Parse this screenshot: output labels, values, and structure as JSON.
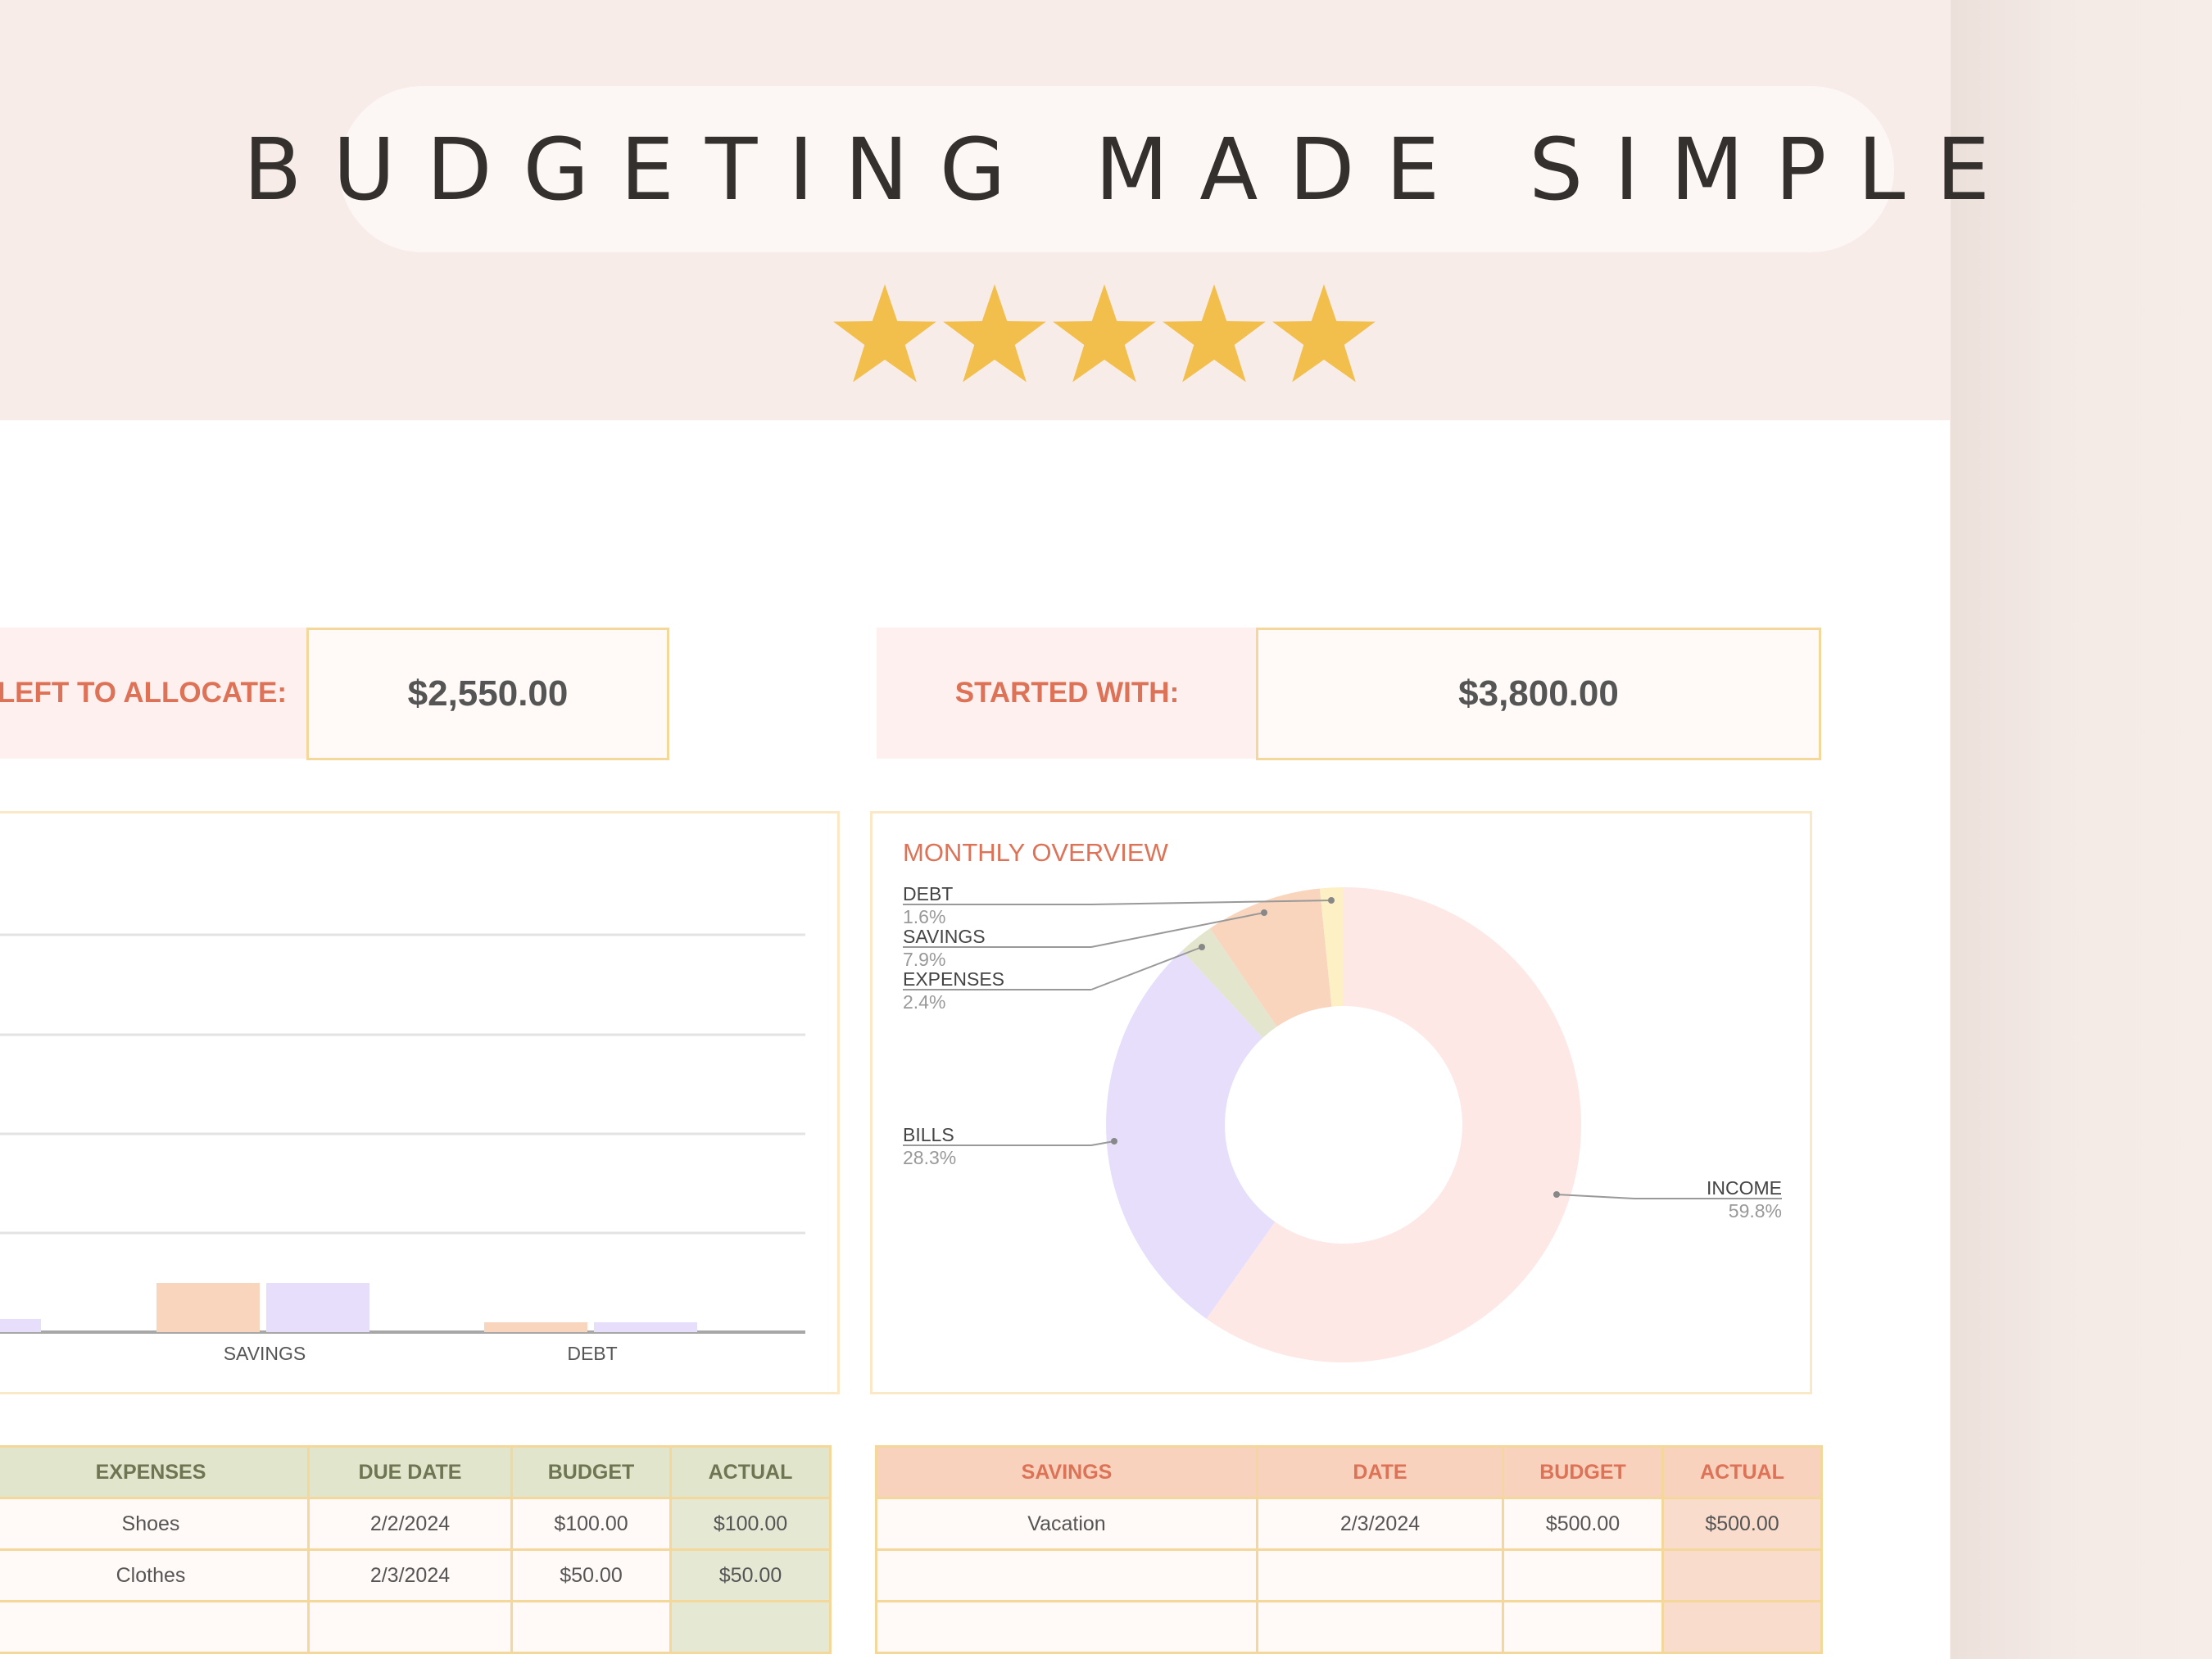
{
  "hero": {
    "headline": "BUDGETING MADE SIMPLE",
    "rating": {
      "stars": 5,
      "max": 5,
      "color": "#f2bf4c"
    }
  },
  "summary": {
    "left_label": "LEFT TO ALLOCATE:",
    "left_value": "$2,550.00",
    "started_label": "STARTED WITH:",
    "started_value": "$3,800.00"
  },
  "bar_chart": {
    "categories": [
      "SAVINGS",
      "DEBT"
    ],
    "colors": {
      "budget": "#f9d5bd",
      "actual": "#e6defb"
    },
    "budget_values": [
      500,
      60
    ],
    "actual_values": [
      500,
      60
    ]
  },
  "donut": {
    "title": "MONTHLY OVERVIEW",
    "slices": [
      {
        "label": "INCOME",
        "pct_label": "59.8%",
        "value": 59.8,
        "color": "#fde8e6"
      },
      {
        "label": "BILLS",
        "pct_label": "28.3%",
        "value": 28.3,
        "color": "#e6defb"
      },
      {
        "label": "EXPENSES",
        "pct_label": "2.4%",
        "value": 2.4,
        "color": "#e4e5cd"
      },
      {
        "label": "SAVINGS",
        "pct_label": "7.9%",
        "value": 7.9,
        "color": "#f9d5bd"
      },
      {
        "label": "DEBT",
        "pct_label": "1.6%",
        "value": 1.6,
        "color": "#fdf0c4"
      }
    ]
  },
  "expenses_table": {
    "headers": [
      "EXPENSES",
      "DUE DATE",
      "BUDGET",
      "ACTUAL"
    ],
    "rows": [
      [
        "Shoes",
        "2/2/2024",
        "$100.00",
        "$100.00"
      ],
      [
        "Clothes",
        "2/3/2024",
        "$50.00",
        "$50.00"
      ],
      [
        "",
        "",
        "",
        ""
      ]
    ]
  },
  "savings_table": {
    "headers": [
      "SAVINGS",
      "DATE",
      "BUDGET",
      "ACTUAL"
    ],
    "rows": [
      [
        "Vacation",
        "2/3/2024",
        "$500.00",
        "$500.00"
      ],
      [
        "",
        "",
        "",
        ""
      ],
      [
        "",
        "",
        "",
        ""
      ]
    ]
  }
}
